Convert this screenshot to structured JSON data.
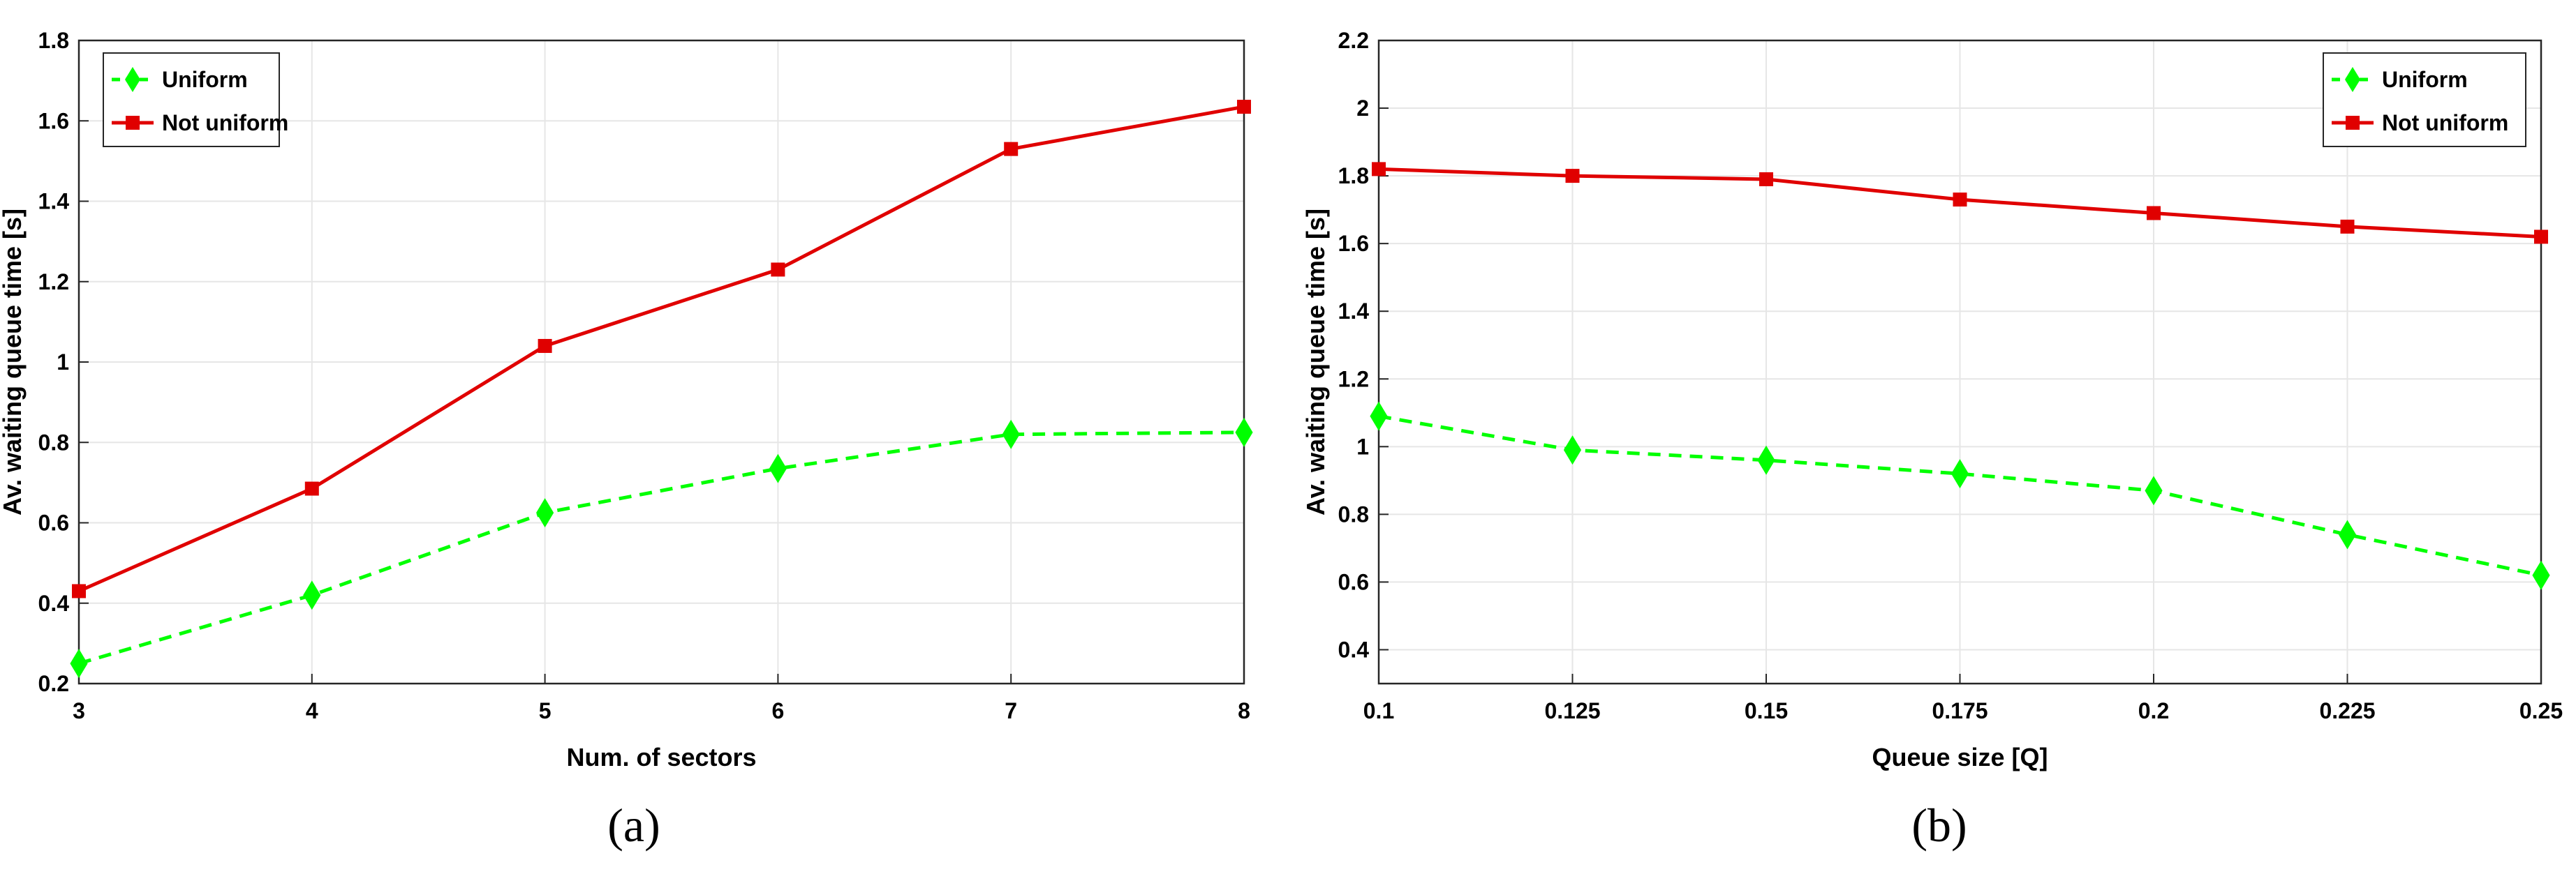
{
  "colors": {
    "uniform": "#00ff00",
    "not_uniform": "#e00000",
    "grid": "#e6e6e6",
    "axes": "#262626"
  },
  "chart_data": [
    {
      "type": "line",
      "panel_label": "(a)",
      "xlabel": "Num. of sectors",
      "ylabel": "Av. waiting queue time [s]",
      "x": [
        3,
        4,
        5,
        6,
        7,
        8
      ],
      "xlim": [
        3,
        8
      ],
      "ylim": [
        0.2,
        1.8
      ],
      "xticks": [
        3,
        4,
        5,
        6,
        7,
        8
      ],
      "xtick_labels": [
        "3",
        "4",
        "5",
        "6",
        "7",
        "8"
      ],
      "yticks": [
        0.2,
        0.4,
        0.6,
        0.8,
        1.0,
        1.2,
        1.4,
        1.6,
        1.8
      ],
      "ytick_labels": [
        "0.2",
        "0.4",
        "0.6",
        "0.8",
        "1",
        "1.2",
        "1.4",
        "1.6",
        "1.8"
      ],
      "grid": true,
      "legend_position": "top-left",
      "series": [
        {
          "name": "Uniform",
          "values": [
            0.25,
            0.42,
            0.625,
            0.735,
            0.82,
            0.825
          ],
          "color": "#00ff00",
          "marker": "diamond",
          "line": "dashed"
        },
        {
          "name": "Not uniform",
          "values": [
            0.43,
            0.685,
            1.04,
            1.23,
            1.53,
            1.635
          ],
          "color": "#e00000",
          "marker": "square",
          "line": "solid"
        }
      ]
    },
    {
      "type": "line",
      "panel_label": "(b)",
      "xlabel": "Queue size [Q]",
      "ylabel": "Av. waiting queue time [s]",
      "x": [
        0.1,
        0.125,
        0.15,
        0.175,
        0.2,
        0.225,
        0.25
      ],
      "xlim": [
        0.1,
        0.25
      ],
      "ylim": [
        0.3,
        2.2
      ],
      "xticks": [
        0.1,
        0.125,
        0.15,
        0.175,
        0.2,
        0.225,
        0.25
      ],
      "xtick_labels": [
        "0.1",
        "0.125",
        "0.15",
        "0.175",
        "0.2",
        "0.225",
        "0.25"
      ],
      "yticks": [
        0.4,
        0.6,
        0.8,
        1.0,
        1.2,
        1.4,
        1.6,
        1.8,
        2.0,
        2.2
      ],
      "ytick_labels": [
        "0.4",
        "0.6",
        "0.8",
        "1",
        "1.2",
        "1.4",
        "1.6",
        "1.8",
        "2",
        "2.2"
      ],
      "grid": true,
      "legend_position": "top-right",
      "series": [
        {
          "name": "Uniform",
          "values": [
            1.09,
            0.99,
            0.96,
            0.92,
            0.87,
            0.74,
            0.62
          ],
          "color": "#00ff00",
          "marker": "diamond",
          "line": "dashed"
        },
        {
          "name": "Not uniform",
          "values": [
            1.82,
            1.8,
            1.79,
            1.73,
            1.69,
            1.65,
            1.62
          ],
          "color": "#e00000",
          "marker": "square",
          "line": "solid"
        }
      ]
    }
  ]
}
